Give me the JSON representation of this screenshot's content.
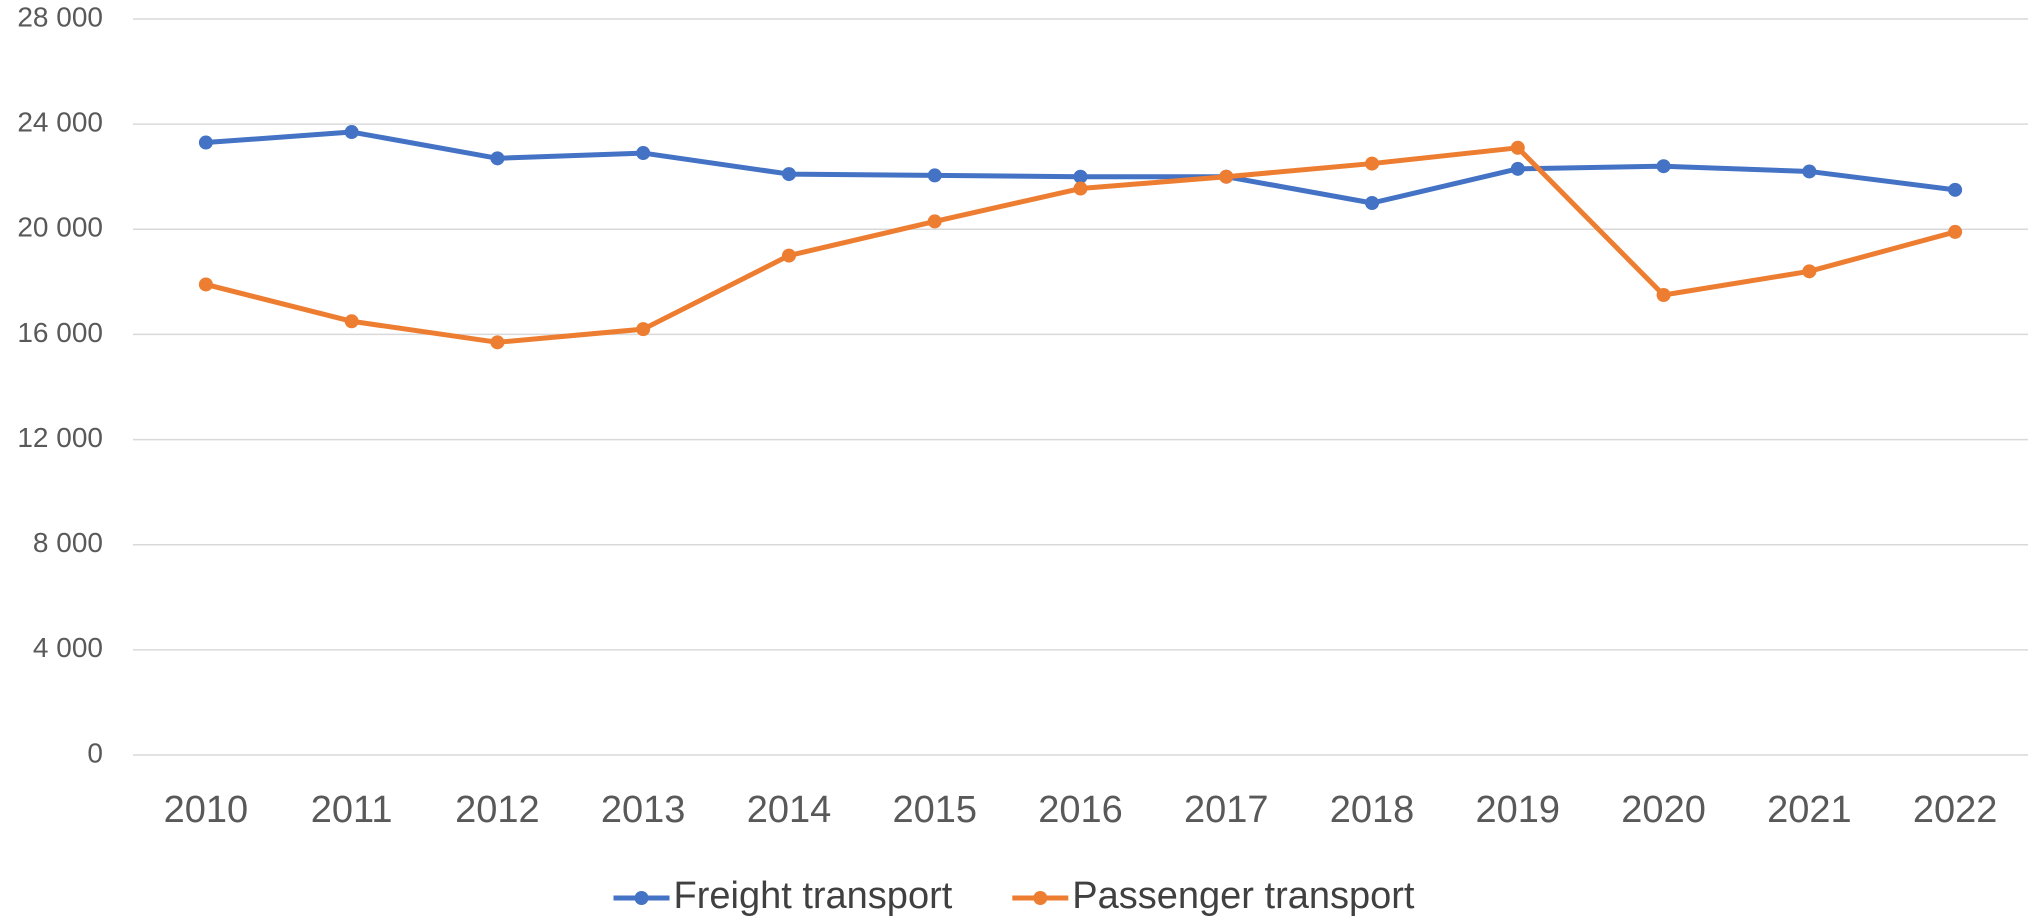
{
  "chart_data": {
    "type": "line",
    "categories": [
      "2010",
      "2011",
      "2012",
      "2013",
      "2014",
      "2015",
      "2016",
      "2017",
      "2018",
      "2019",
      "2020",
      "2021",
      "2022"
    ],
    "series": [
      {
        "name": "Freight transport",
        "color": "#4472c4",
        "values": [
          23300,
          23700,
          22700,
          22900,
          22100,
          22050,
          22000,
          22000,
          21000,
          22300,
          22400,
          22200,
          21500
        ]
      },
      {
        "name": "Passenger transport",
        "color": "#ed7d31",
        "values": [
          17900,
          16500,
          15700,
          16200,
          19000,
          20300,
          21550,
          22000,
          22500,
          23100,
          17500,
          18400,
          19900
        ]
      }
    ],
    "ylim": [
      0,
      28000
    ],
    "yticks": [
      0,
      {
        "value": 4000,
        "label": "4 000"
      },
      {
        "value": 8000,
        "label": "8 000"
      },
      {
        "value": 12000,
        "label": "12 000"
      },
      {
        "value": 16000,
        "label": "16 000"
      },
      {
        "value": 20000,
        "label": "20 000"
      },
      {
        "value": 24000,
        "label": "24 000"
      },
      {
        "value": 28000,
        "label": "28 000"
      }
    ],
    "grid": true,
    "legend": "bottom"
  }
}
